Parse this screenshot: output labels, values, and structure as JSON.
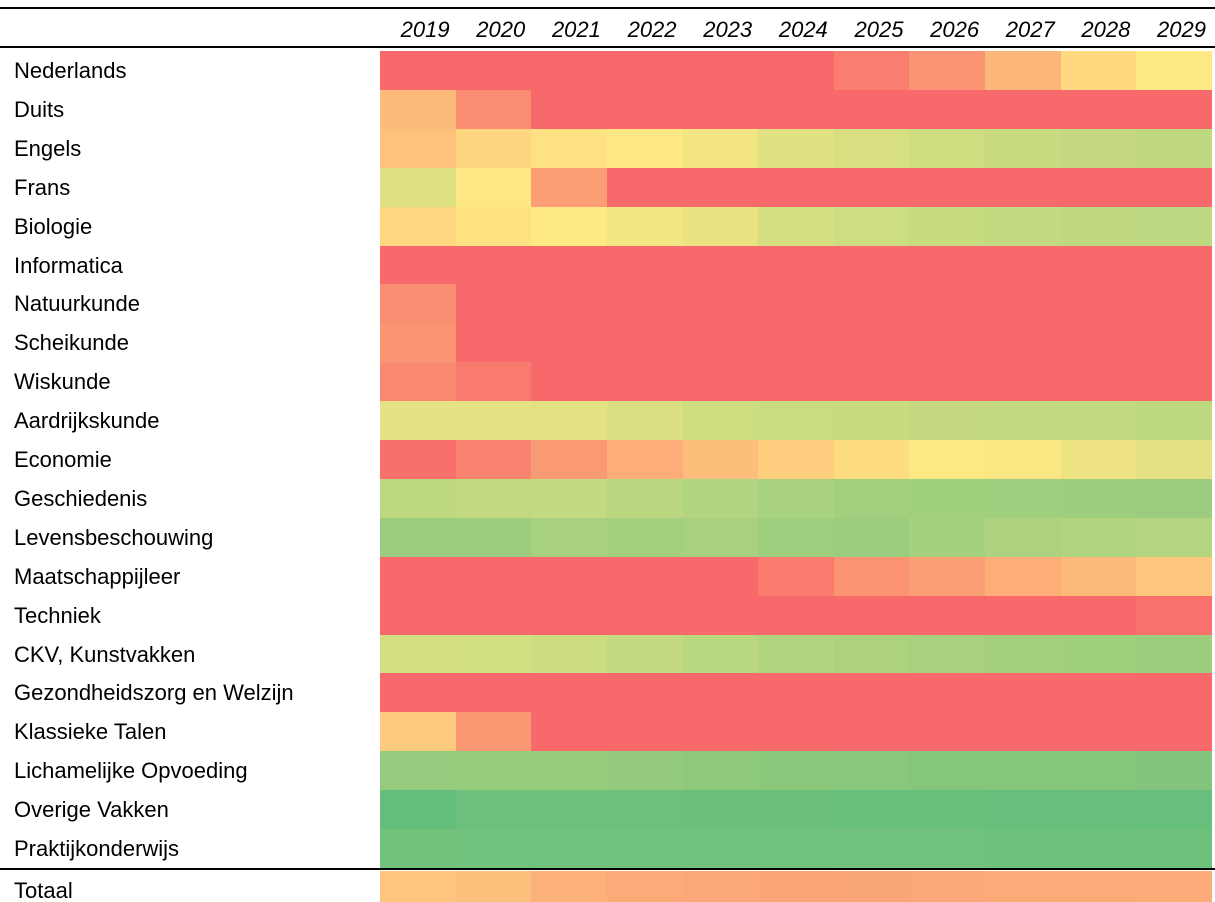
{
  "table": {
    "years": [
      "2019",
      "2020",
      "2021",
      "2022",
      "2023",
      "2024",
      "2025",
      "2026",
      "2027",
      "2028",
      "2029"
    ],
    "rows": [
      {
        "label": "Nederlands",
        "colors": [
          "#f8696b",
          "#f8696b",
          "#f8696b",
          "#f8696b",
          "#f8696b",
          "#f8696b",
          "#f97e6f",
          "#fa9473",
          "#fcb67a",
          "#fed980",
          "#fee883"
        ]
      },
      {
        "label": "Duits",
        "colors": [
          "#fdbb7b",
          "#fa8c72",
          "#f8696b",
          "#f8696b",
          "#f8696b",
          "#f8696b",
          "#f8696b",
          "#f8696b",
          "#f8696b",
          "#f8696b",
          "#f8696b"
        ]
      },
      {
        "label": "Engels",
        "colors": [
          "#fdc27c",
          "#fed680",
          "#fee182",
          "#ffe884",
          "#f3e583",
          "#dfe182",
          "#d8df81",
          "#cfdd81",
          "#c9db80",
          "#c5da80",
          "#c0d980"
        ]
      },
      {
        "label": "Frans",
        "colors": [
          "#dde182",
          "#ffe784",
          "#fb9d75",
          "#f8696b",
          "#f8696b",
          "#f8696b",
          "#f8696b",
          "#f8696b",
          "#f8696b",
          "#f8696b",
          "#f8696b"
        ]
      },
      {
        "label": "Biologie",
        "colors": [
          "#fed880",
          "#fee282",
          "#fee983",
          "#f2e583",
          "#ebe382",
          "#d5df81",
          "#cddd81",
          "#c7db80",
          "#c3da80",
          "#c0d980",
          "#bdd880"
        ]
      },
      {
        "label": "Informatica",
        "colors": [
          "#f8696b",
          "#f8696b",
          "#f8696b",
          "#f8696b",
          "#f8696b",
          "#f8696b",
          "#f8696b",
          "#f8696b",
          "#f8696b",
          "#f8696b",
          "#f8696b"
        ]
      },
      {
        "label": "Natuurkunde",
        "colors": [
          "#fa8e72",
          "#f8696b",
          "#f8696b",
          "#f8696b",
          "#f8696b",
          "#f8696b",
          "#f8696b",
          "#f8696b",
          "#f8696b",
          "#f8696b",
          "#f8696b"
        ]
      },
      {
        "label": "Scheikunde",
        "colors": [
          "#fa9473",
          "#f8696b",
          "#f8696b",
          "#f8696b",
          "#f8696b",
          "#f8696b",
          "#f8696b",
          "#f8696b",
          "#f8696b",
          "#f8696b",
          "#f8696b"
        ]
      },
      {
        "label": "Wiskunde",
        "colors": [
          "#f98a71",
          "#f97a6e",
          "#f8696b",
          "#f8696b",
          "#f8696b",
          "#f8696b",
          "#f8696b",
          "#f8696b",
          "#f8696b",
          "#f8696b",
          "#f8696b"
        ]
      },
      {
        "label": "Aardrijkskunde",
        "colors": [
          "#e4e283",
          "#e5e283",
          "#e3e282",
          "#dae081",
          "#cfdd81",
          "#cadc80",
          "#c8db80",
          "#c5da80",
          "#c3da80",
          "#c1d980",
          "#bed880"
        ]
      },
      {
        "label": "Economie",
        "colors": [
          "#f8706c",
          "#f98570",
          "#fa9a74",
          "#fcad78",
          "#fdbd7b",
          "#fece7e",
          "#fedc81",
          "#ffe984",
          "#f8e783",
          "#ede383",
          "#e3e182"
        ]
      },
      {
        "label": "Geschiedenis",
        "colors": [
          "#bed880",
          "#c2d980",
          "#c3da80",
          "#bad780",
          "#b0d47f",
          "#a8d27f",
          "#a3d07e",
          "#a0cf7e",
          "#9ece7e",
          "#9dce7e",
          "#9ccd7e"
        ]
      },
      {
        "label": "Levensbeschouwing",
        "colors": [
          "#9acd7e",
          "#9ccd7e",
          "#a8d17f",
          "#a3d07e",
          "#a7d17f",
          "#9fce7e",
          "#9bcd7e",
          "#a5d17f",
          "#acd27f",
          "#b0d47f",
          "#b4d57f"
        ]
      },
      {
        "label": "Maatschappijleer",
        "colors": [
          "#f8696b",
          "#f8696b",
          "#f8696b",
          "#f8696b",
          "#f8696b",
          "#f97c6f",
          "#fa9473",
          "#fb9f75",
          "#fcad78",
          "#fdba7b",
          "#fec67d"
        ]
      },
      {
        "label": "Techniek",
        "colors": [
          "#f8696b",
          "#f8696b",
          "#f8696b",
          "#f8696b",
          "#f8696b",
          "#f8696b",
          "#f8696b",
          "#f8696b",
          "#f8696b",
          "#f8696b",
          "#f8716c"
        ]
      },
      {
        "label": "CKV, Kunstvakken",
        "colors": [
          "#d2de81",
          "#d1de81",
          "#ccdc81",
          "#c2d980",
          "#b9d77f",
          "#b1d47f",
          "#acd27f",
          "#a8d17f",
          "#a4d07e",
          "#a0cf7e",
          "#9dce7e"
        ]
      },
      {
        "label": "Gezondheidszorg en Welzijn",
        "colors": [
          "#f8696b",
          "#f8696b",
          "#f8696b",
          "#f8696b",
          "#f8696b",
          "#f8696b",
          "#f8696b",
          "#f8696b",
          "#f8696b",
          "#f8696b",
          "#f8696b"
        ]
      },
      {
        "label": "Klassieke Talen",
        "colors": [
          "#fecb7e",
          "#fa9874",
          "#f8696b",
          "#f8696b",
          "#f8696b",
          "#f8696b",
          "#f8696b",
          "#f8696b",
          "#f8696b",
          "#f8696b",
          "#f8696b"
        ]
      },
      {
        "label": "Lichamelijke Opvoeding",
        "colors": [
          "#94cb7d",
          "#98cc7d",
          "#98cc7d",
          "#93ca7d",
          "#8ec97c",
          "#8ac87c",
          "#88c77c",
          "#86c67c",
          "#85c67c",
          "#84c67c",
          "#83c57c"
        ]
      },
      {
        "label": "Overige Vakken",
        "colors": [
          "#63be7b",
          "#6bc07b",
          "#6cc17b",
          "#6bc07b",
          "#6ac07b",
          "#6ac07b",
          "#69c07b",
          "#69c07b",
          "#68bf7b",
          "#67bf7b",
          "#66bf7b"
        ]
      },
      {
        "label": "Praktijkonderwijs",
        "colors": [
          "#72c27c",
          "#71c27c",
          "#71c27c",
          "#70c27c",
          "#70c17c",
          "#6fc17b",
          "#6fc17b",
          "#6fc17b",
          "#6ec17b",
          "#6ec17b",
          "#6dc17b"
        ]
      }
    ],
    "total": {
      "label": "Totaal",
      "colors": [
        "#fdc57d",
        "#fdc07c",
        "#fcb179",
        "#fcab78",
        "#fba777",
        "#fba577",
        "#fba677",
        "#fba777",
        "#fcaa78",
        "#fbab78",
        "#fcac78"
      ]
    }
  }
}
